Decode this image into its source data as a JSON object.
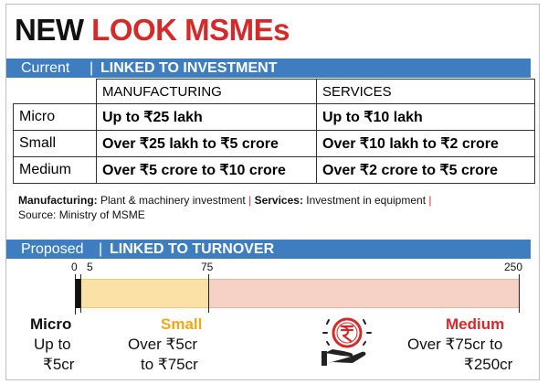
{
  "title": {
    "part1": "NEW ",
    "part2": "LOOK MSMEs"
  },
  "current": {
    "label": "Current",
    "separator": "|",
    "caption": "LINKED TO INVESTMENT",
    "headers": [
      "MANUFACTURING",
      "SERVICES"
    ],
    "rows": [
      {
        "category": "Micro",
        "manufacturing": "Up to ₹25 lakh",
        "services": "Up to ₹10 lakh"
      },
      {
        "category": "Small",
        "manufacturing": "Over ₹25 lakh to ₹5 crore",
        "services": "Over ₹10 lakh to ₹2 crore"
      },
      {
        "category": "Medium",
        "manufacturing": "Over ₹5 crore to ₹10 crore",
        "services": "Over ₹2 crore to ₹5 crore"
      }
    ],
    "note": {
      "mfg_label": "Manufacturing:",
      "mfg_text": "Plant & machinery investment",
      "sep": "|",
      "svc_label": "Services:",
      "svc_text": "Investment in equipment",
      "sep2": "|",
      "source": "Source: Ministry of MSME"
    }
  },
  "proposed": {
    "label": "Proposed",
    "separator": "|",
    "caption": "LINKED TO TURNOVER",
    "ticks": [
      "0",
      "5",
      "75",
      "250"
    ],
    "scale": {
      "min": 0,
      "max": 250,
      "small_start": 5,
      "medium_start": 75
    },
    "colors": {
      "micro": "#111111",
      "small": "#fbe1a5",
      "medium": "#f6d1c6",
      "small_label": "#f0a818",
      "medium_label": "#d42a2a"
    },
    "micro": {
      "name": "Micro",
      "line1": "Up to",
      "line2": "₹5cr"
    },
    "small": {
      "name": "Small",
      "line1": "Over ₹5cr",
      "line2": "to ₹75cr"
    },
    "medium": {
      "name": "Medium",
      "line1": "Over ₹75cr to",
      "line2": "₹250cr"
    },
    "icon": "rupee-coin-hand-icon"
  }
}
